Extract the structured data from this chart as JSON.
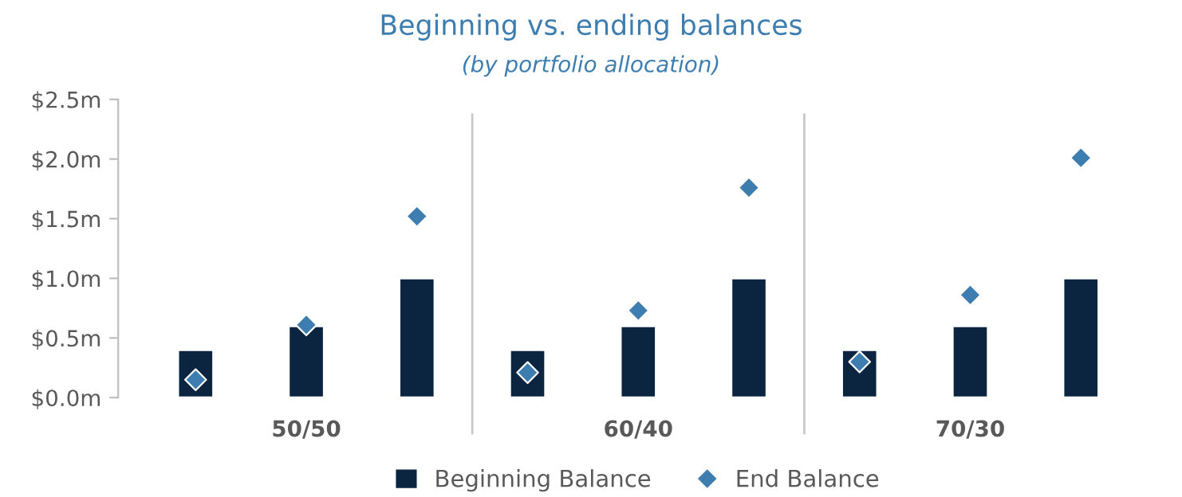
{
  "chart_data": {
    "type": "bar",
    "title": "Beginning vs. ending balances",
    "subtitle": "(by portfolio allocation)",
    "categories": [
      null,
      "50/50",
      null,
      null,
      "60/40",
      null,
      null,
      "70/30",
      null
    ],
    "series": [
      {
        "name": "Beginning Balance",
        "color": "#0b2540",
        "values": [
          0.4,
          0.6,
          1.0,
          0.4,
          0.6,
          1.0,
          0.4,
          0.6,
          1.0
        ]
      },
      {
        "name": "End Balance",
        "type": "scatter",
        "color": "#3d7db0",
        "marker": "diamond",
        "values": [
          0.15,
          0.61,
          1.52,
          0.21,
          0.73,
          1.76,
          0.3,
          0.86,
          2.01
        ]
      }
    ],
    "ylim": [
      0,
      2.5
    ],
    "yticks": [
      {
        "value": 0,
        "label": "$0.0m"
      },
      {
        "value": 0.5,
        "label": "$0.5m"
      },
      {
        "value": 1.0,
        "label": "$1.0m"
      },
      {
        "value": 1.5,
        "label": "$1.5m"
      },
      {
        "value": 2.0,
        "label": "$2.0m"
      },
      {
        "value": 2.5,
        "label": "$2.5m"
      }
    ],
    "grid": false,
    "legend": "bottom"
  }
}
